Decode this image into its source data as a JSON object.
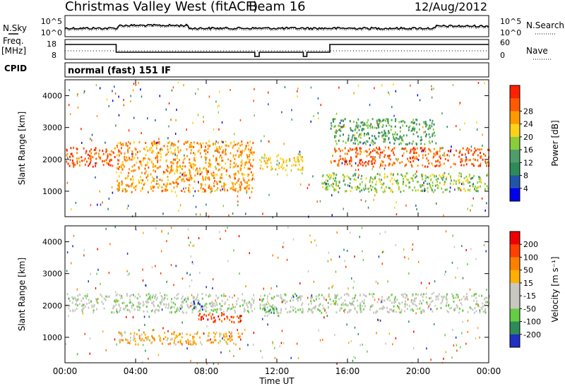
{
  "header": {
    "title": "Christmas Valley West (fitACF)",
    "beam": "Beam 16",
    "date": "12/Aug/2012"
  },
  "panels": {
    "nsky_label": "N.Sky",
    "nsky_ticks": [
      "10^5",
      "10^0"
    ],
    "nsearch_label": "N.Search",
    "nsearch_ticks": [
      "10^5",
      "10^0"
    ],
    "freq_label": "Freq.",
    "freq_unit": "[MHz]",
    "freq_ticks": [
      "18",
      "8"
    ],
    "nave_label": "Nave",
    "nave_ticks": [
      "60",
      "0"
    ],
    "cpid_label": "CPID",
    "cpid_value": "normal (fast) 151 IF"
  },
  "chart_data": [
    {
      "type": "heatmap",
      "name": "power",
      "ylabel": "Slant Range [km]",
      "yticks": [
        "1000",
        "2000",
        "3000",
        "4000"
      ],
      "ylim": [
        200,
        4500
      ],
      "colorbar_label": "Power [dB]",
      "colorbar_ticks": [
        "4",
        "8",
        "12",
        "16",
        "20",
        "24",
        "28"
      ],
      "colors": [
        "#0000ee",
        "#2255aa",
        "#2e8b57",
        "#4f9d6a",
        "#8acd3c",
        "#ffd21a",
        "#ff9a00",
        "#ff5a00",
        "#ff2000"
      ],
      "bands": [
        {
          "x": [
            0.0,
            2.9
          ],
          "y": [
            1800,
            2400
          ],
          "level": 7
        },
        {
          "x": [
            2.9,
            10.7
          ],
          "y": [
            1000,
            2600
          ],
          "level": 6
        },
        {
          "x": [
            11.0,
            13.5
          ],
          "y": [
            1700,
            2200
          ],
          "level": 5
        },
        {
          "x": [
            15.0,
            24.0
          ],
          "y": [
            1800,
            2400
          ],
          "level": 7
        },
        {
          "x": [
            14.5,
            24.0
          ],
          "y": [
            1000,
            1600
          ],
          "level": 4
        },
        {
          "x": [
            15.0,
            21.0
          ],
          "y": [
            2500,
            3300
          ],
          "level": 3
        }
      ]
    },
    {
      "type": "heatmap",
      "name": "velocity",
      "ylabel": "Slant Range [km]",
      "yticks": [
        "1000",
        "2000",
        "3000",
        "4000"
      ],
      "ylim": [
        200,
        4500
      ],
      "xlabel": "Time UT",
      "xticks": [
        "00:00",
        "04:00",
        "08:00",
        "12:00",
        "16:00",
        "20:00",
        "00:00"
      ],
      "xlim": [
        0,
        24
      ],
      "colorbar_label": "Velocity [m s⁻¹]",
      "colorbar_ticks": [
        "200",
        "100",
        "50",
        "15",
        "-15",
        "-50",
        "-100",
        "-200"
      ],
      "colors": [
        "#2030c0",
        "#2e8b57",
        "#66cc44",
        "#c8c8c0",
        "#c8c8c0",
        "#ffb000",
        "#ff8000",
        "#ff4000",
        "#ee0000"
      ],
      "bands": [
        {
          "x": [
            0.0,
            24.0
          ],
          "y": [
            1800,
            2400
          ],
          "level": 3
        },
        {
          "x": [
            7.5,
            10.0
          ],
          "y": [
            1500,
            1800
          ],
          "level": 7
        },
        {
          "x": [
            3.0,
            10.0
          ],
          "y": [
            800,
            1200
          ],
          "level": 5
        },
        {
          "x": [
            7.2,
            7.8
          ],
          "y": [
            1900,
            2200
          ],
          "level": 0
        },
        {
          "x": [
            11.2,
            12.2
          ],
          "y": [
            1700,
            2000
          ],
          "level": 2
        }
      ]
    }
  ],
  "colors": {
    "axis": "#000000",
    "background": "#ffffff",
    "gap": "#ffffff"
  }
}
